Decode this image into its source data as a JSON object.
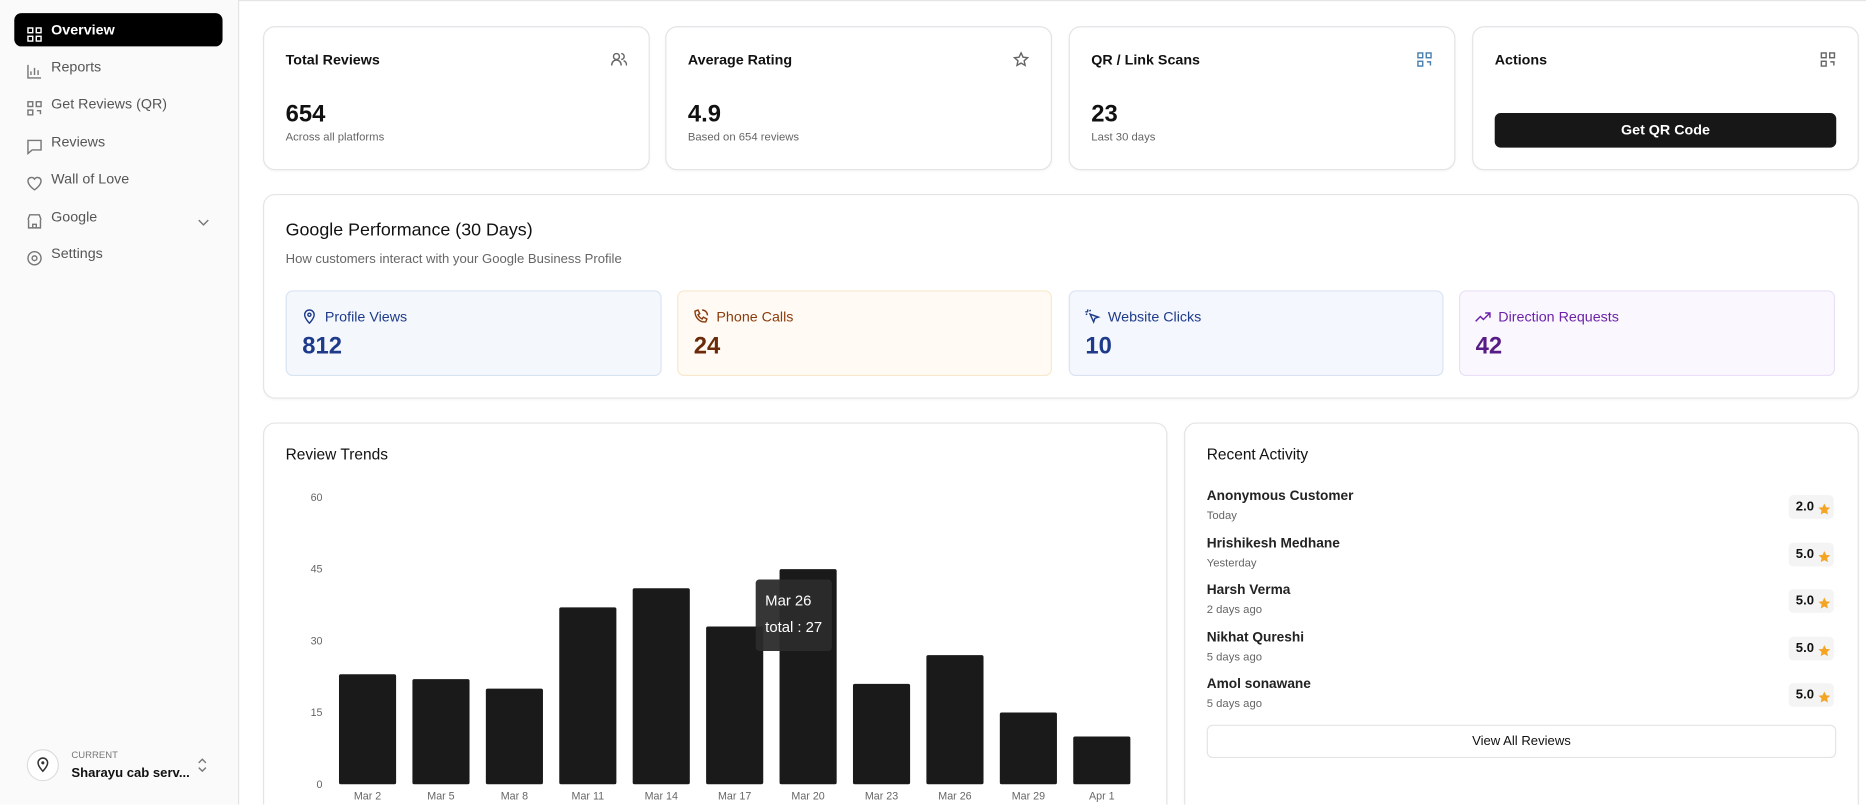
{
  "sidebar": {
    "nav": [
      "Overview",
      "Reports",
      "Get Reviews (QR)",
      "Reviews",
      "Wall of Love",
      "Google",
      "Settings"
    ],
    "current_label": "CURRENT",
    "current_value": "Sharayu cab serv..."
  },
  "stats": [
    {
      "title": "Total Reviews",
      "value": "654",
      "note": "Across all platforms"
    },
    {
      "title": "Average Rating",
      "value": "4.9",
      "note": "Based on 654 reviews"
    },
    {
      "title": "QR / Link Scans",
      "value": "23",
      "note": "Last 30 days"
    },
    {
      "title": "Actions",
      "button": "Get QR Code"
    }
  ],
  "performance": {
    "title": "Google Performance (30 Days)",
    "subtitle": "How customers interact with your Google Business Profile",
    "metrics": [
      {
        "label": "Profile Views",
        "value": "812"
      },
      {
        "label": "Phone Calls",
        "value": "24"
      },
      {
        "label": "Website Clicks",
        "value": "10"
      },
      {
        "label": "Direction Requests",
        "value": "42"
      }
    ]
  },
  "chart_data": {
    "type": "bar",
    "title": "Review Trends",
    "categories": [
      "Mar 2",
      "Mar 5",
      "Mar 8",
      "Mar 11",
      "Mar 14",
      "Mar 17",
      "Mar 20",
      "Mar 23",
      "Mar 26",
      "Mar 29",
      "Apr 1"
    ],
    "values": [
      23,
      22,
      20,
      37,
      41,
      33,
      45,
      21,
      27,
      15,
      10
    ],
    "color": "#1a1a1a",
    "ylim": [
      0,
      60
    ],
    "yticks": [
      0,
      15,
      30,
      45,
      60
    ],
    "grid": false,
    "tooltip": {
      "title": "Mar 26",
      "text": "total : 27"
    }
  },
  "activity": {
    "title": "Recent Activity",
    "items": [
      {
        "name": "Anonymous Customer",
        "time": "Today",
        "rating": "2.0"
      },
      {
        "name": "Hrishikesh Medhane",
        "time": "Yesterday",
        "rating": "5.0"
      },
      {
        "name": "Harsh Verma",
        "time": "2 days ago",
        "rating": "5.0"
      },
      {
        "name": "Nikhat Qureshi",
        "time": "5 days ago",
        "rating": "5.0"
      },
      {
        "name": "Amol sonawane",
        "time": "5 days ago",
        "rating": "5.0"
      }
    ],
    "button": "View All Reviews"
  }
}
